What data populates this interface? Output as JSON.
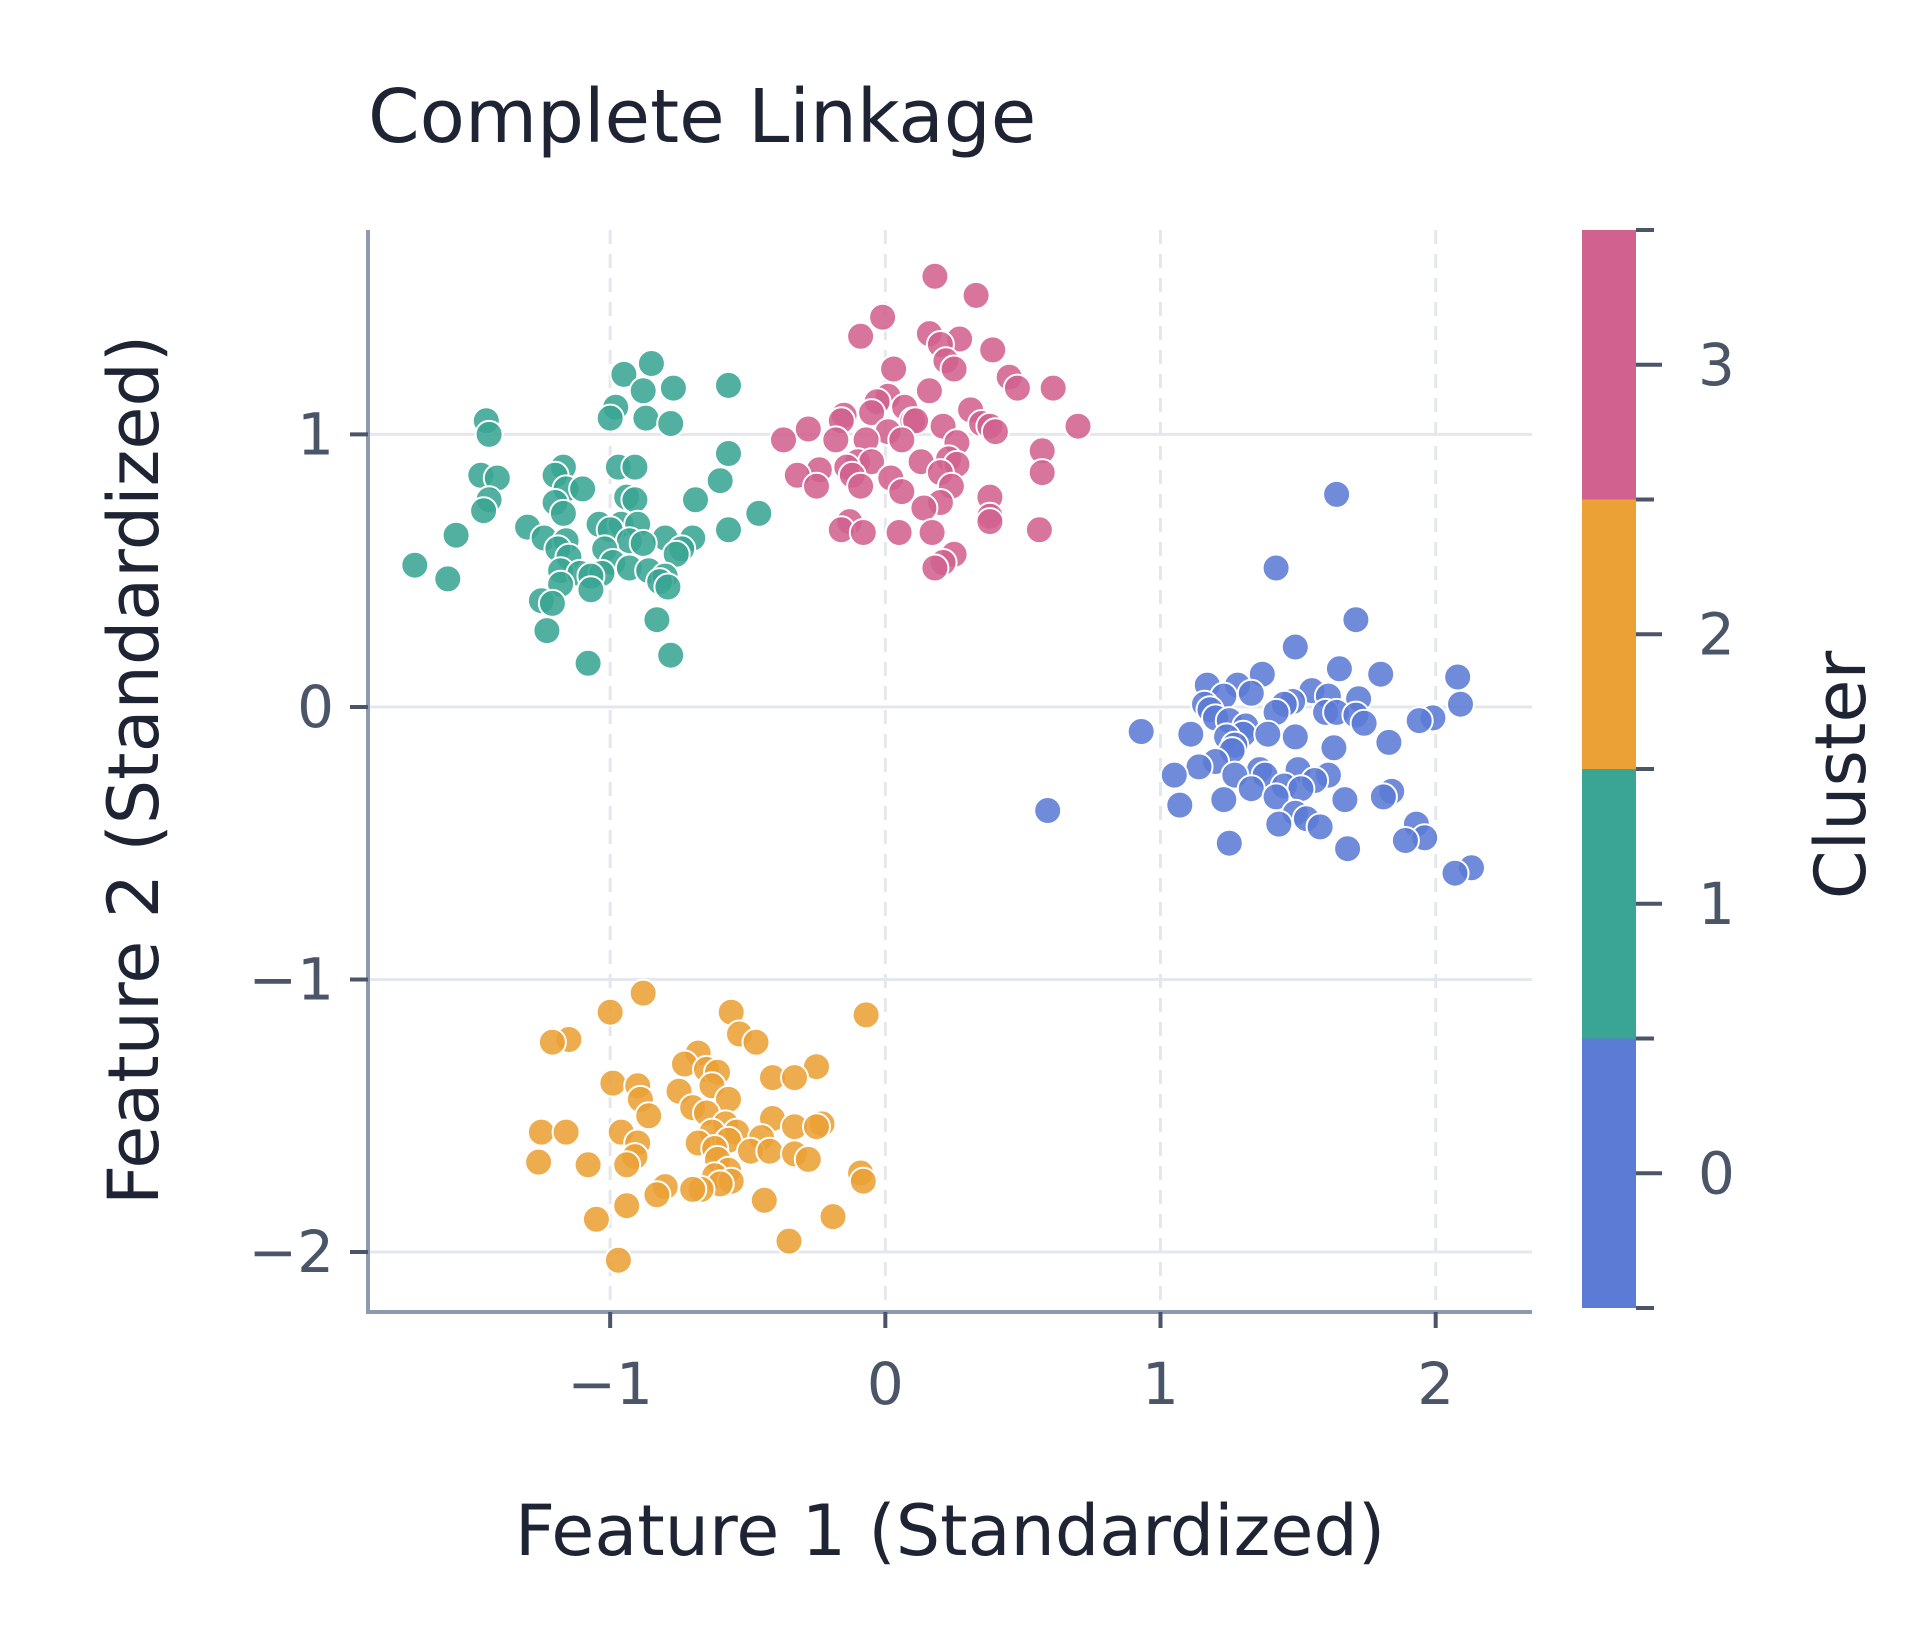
{
  "chart_data": {
    "type": "scatter",
    "title": "Complete Linkage",
    "xlabel": "Feature 1 (Standardized)",
    "ylabel": "Feature 2 (Standardized)",
    "xlim": [
      -1.88,
      2.35
    ],
    "ylim": [
      -2.22,
      1.75
    ],
    "xticks": [
      -1,
      0,
      1,
      2
    ],
    "xtick_labels": [
      "−1",
      "0",
      "1",
      "2"
    ],
    "yticks": [
      -2,
      -1,
      0,
      1
    ],
    "ytick_labels": [
      "−2",
      "−1",
      "0",
      "1"
    ],
    "grid": true,
    "colorbar": {
      "label": "Cluster",
      "ticks": [
        0,
        1,
        2,
        3
      ],
      "tick_labels": [
        "0",
        "1",
        "2",
        "3"
      ],
      "range": [
        -0.5,
        3.5
      ]
    },
    "series": [
      {
        "cluster": 0,
        "color": "#5b7bd5",
        "points": [
          [
            1.64,
            0.78
          ],
          [
            1.42,
            0.51
          ],
          [
            1.71,
            0.32
          ],
          [
            1.49,
            0.22
          ],
          [
            1.65,
            0.14
          ],
          [
            1.8,
            0.12
          ],
          [
            1.37,
            0.12
          ],
          [
            2.08,
            0.11
          ],
          [
            1.28,
            0.08
          ],
          [
            1.17,
            0.08
          ],
          [
            1.55,
            0.06
          ],
          [
            1.33,
            0.05
          ],
          [
            1.23,
            0.04
          ],
          [
            1.61,
            0.04
          ],
          [
            1.72,
            0.03
          ],
          [
            1.48,
            0.02
          ],
          [
            2.09,
            0.01
          ],
          [
            1.45,
            0.01
          ],
          [
            1.16,
            0.01
          ],
          [
            1.18,
            -0.01
          ],
          [
            1.6,
            -0.02
          ],
          [
            1.42,
            -0.02
          ],
          [
            1.64,
            -0.02
          ],
          [
            1.71,
            -0.03
          ],
          [
            1.2,
            -0.04
          ],
          [
            1.99,
            -0.04
          ],
          [
            1.25,
            -0.05
          ],
          [
            1.94,
            -0.05
          ],
          [
            1.74,
            -0.06
          ],
          [
            1.31,
            -0.07
          ],
          [
            0.93,
            -0.09
          ],
          [
            1.3,
            -0.1
          ],
          [
            1.39,
            -0.1
          ],
          [
            1.11,
            -0.1
          ],
          [
            1.24,
            -0.11
          ],
          [
            1.49,
            -0.11
          ],
          [
            1.83,
            -0.13
          ],
          [
            1.27,
            -0.14
          ],
          [
            1.63,
            -0.15
          ],
          [
            1.26,
            -0.16
          ],
          [
            1.2,
            -0.2
          ],
          [
            1.14,
            -0.22
          ],
          [
            1.36,
            -0.23
          ],
          [
            1.5,
            -0.23
          ],
          [
            1.05,
            -0.25
          ],
          [
            1.27,
            -0.25
          ],
          [
            1.38,
            -0.25
          ],
          [
            1.61,
            -0.25
          ],
          [
            1.56,
            -0.27
          ],
          [
            1.45,
            -0.29
          ],
          [
            1.51,
            -0.3
          ],
          [
            1.33,
            -0.3
          ],
          [
            1.84,
            -0.31
          ],
          [
            1.81,
            -0.33
          ],
          [
            1.42,
            -0.33
          ],
          [
            1.23,
            -0.34
          ],
          [
            1.67,
            -0.34
          ],
          [
            1.07,
            -0.36
          ],
          [
            0.59,
            -0.38
          ],
          [
            1.49,
            -0.39
          ],
          [
            1.53,
            -0.41
          ],
          [
            1.93,
            -0.43
          ],
          [
            1.43,
            -0.43
          ],
          [
            1.58,
            -0.44
          ],
          [
            1.96,
            -0.48
          ],
          [
            1.89,
            -0.49
          ],
          [
            1.25,
            -0.5
          ],
          [
            1.68,
            -0.52
          ],
          [
            2.13,
            -0.59
          ],
          [
            2.07,
            -0.61
          ]
        ]
      },
      {
        "cluster": 1,
        "color": "#3aa594",
        "points": [
          [
            -0.85,
            1.26
          ],
          [
            -0.95,
            1.22
          ],
          [
            -0.57,
            1.18
          ],
          [
            -0.77,
            1.17
          ],
          [
            -0.88,
            1.16
          ],
          [
            -0.98,
            1.1
          ],
          [
            -1.0,
            1.06
          ],
          [
            -0.87,
            1.06
          ],
          [
            -1.45,
            1.05
          ],
          [
            -0.78,
            1.04
          ],
          [
            -1.44,
            1.0
          ],
          [
            -0.57,
            0.93
          ],
          [
            -1.17,
            0.88
          ],
          [
            -0.97,
            0.88
          ],
          [
            -0.91,
            0.88
          ],
          [
            -1.47,
            0.85
          ],
          [
            -1.2,
            0.85
          ],
          [
            -1.41,
            0.84
          ],
          [
            -0.6,
            0.83
          ],
          [
            -1.16,
            0.8
          ],
          [
            -1.1,
            0.8
          ],
          [
            -0.94,
            0.77
          ],
          [
            -1.44,
            0.76
          ],
          [
            -0.91,
            0.76
          ],
          [
            -0.69,
            0.76
          ],
          [
            -1.2,
            0.75
          ],
          [
            -1.46,
            0.72
          ],
          [
            -1.17,
            0.71
          ],
          [
            -0.46,
            0.71
          ],
          [
            -1.04,
            0.67
          ],
          [
            -0.96,
            0.67
          ],
          [
            -0.9,
            0.67
          ],
          [
            -1.3,
            0.66
          ],
          [
            -1.0,
            0.65
          ],
          [
            -0.57,
            0.65
          ],
          [
            -1.56,
            0.63
          ],
          [
            -1.24,
            0.62
          ],
          [
            -0.8,
            0.62
          ],
          [
            -0.7,
            0.62
          ],
          [
            -1.16,
            0.61
          ],
          [
            -0.93,
            0.61
          ],
          [
            -0.88,
            0.6
          ],
          [
            -1.19,
            0.58
          ],
          [
            -1.02,
            0.58
          ],
          [
            -0.74,
            0.58
          ],
          [
            -0.76,
            0.56
          ],
          [
            -1.15,
            0.55
          ],
          [
            -0.99,
            0.53
          ],
          [
            -0.93,
            0.51
          ],
          [
            -1.71,
            0.52
          ],
          [
            -1.18,
            0.5
          ],
          [
            -0.86,
            0.5
          ],
          [
            -1.11,
            0.49
          ],
          [
            -1.03,
            0.49
          ],
          [
            -1.07,
            0.48
          ],
          [
            -0.8,
            0.48
          ],
          [
            -1.59,
            0.47
          ],
          [
            -0.82,
            0.46
          ],
          [
            -1.18,
            0.45
          ],
          [
            -0.79,
            0.44
          ],
          [
            -1.07,
            0.43
          ],
          [
            -1.25,
            0.39
          ],
          [
            -1.21,
            0.38
          ],
          [
            -0.83,
            0.32
          ],
          [
            -1.23,
            0.28
          ],
          [
            -0.78,
            0.19
          ],
          [
            -1.08,
            0.16
          ]
        ]
      },
      {
        "cluster": 2,
        "color": "#eba136",
        "points": [
          [
            -0.88,
            -1.05
          ],
          [
            -1.0,
            -1.12
          ],
          [
            -0.56,
            -1.12
          ],
          [
            -0.07,
            -1.13
          ],
          [
            -0.53,
            -1.2
          ],
          [
            -0.47,
            -1.23
          ],
          [
            -1.15,
            -1.22
          ],
          [
            -1.21,
            -1.23
          ],
          [
            -0.68,
            -1.27
          ],
          [
            -0.73,
            -1.31
          ],
          [
            -0.65,
            -1.33
          ],
          [
            -0.25,
            -1.32
          ],
          [
            -0.61,
            -1.34
          ],
          [
            -0.41,
            -1.36
          ],
          [
            -0.33,
            -1.36
          ],
          [
            -0.99,
            -1.38
          ],
          [
            -0.9,
            -1.39
          ],
          [
            -0.63,
            -1.39
          ],
          [
            -0.75,
            -1.41
          ],
          [
            -0.89,
            -1.44
          ],
          [
            -0.57,
            -1.44
          ],
          [
            -0.7,
            -1.47
          ],
          [
            -0.65,
            -1.49
          ],
          [
            -0.86,
            -1.5
          ],
          [
            -0.41,
            -1.51
          ],
          [
            -0.23,
            -1.53
          ],
          [
            -0.58,
            -1.53
          ],
          [
            -0.33,
            -1.54
          ],
          [
            -0.25,
            -1.54
          ],
          [
            -0.63,
            -1.56
          ],
          [
            -0.54,
            -1.56
          ],
          [
            -1.25,
            -1.56
          ],
          [
            -1.16,
            -1.56
          ],
          [
            -0.96,
            -1.56
          ],
          [
            -0.45,
            -1.58
          ],
          [
            -0.57,
            -1.59
          ],
          [
            -0.68,
            -1.6
          ],
          [
            -0.9,
            -1.6
          ],
          [
            -0.62,
            -1.62
          ],
          [
            -0.49,
            -1.63
          ],
          [
            -0.42,
            -1.63
          ],
          [
            -0.33,
            -1.64
          ],
          [
            -0.91,
            -1.65
          ],
          [
            -0.28,
            -1.66
          ],
          [
            -0.61,
            -1.66
          ],
          [
            -1.26,
            -1.67
          ],
          [
            -1.08,
            -1.68
          ],
          [
            -0.94,
            -1.68
          ],
          [
            -0.57,
            -1.7
          ],
          [
            -0.62,
            -1.72
          ],
          [
            -0.09,
            -1.71
          ],
          [
            -0.08,
            -1.74
          ],
          [
            -0.56,
            -1.74
          ],
          [
            -0.6,
            -1.75
          ],
          [
            -0.67,
            -1.77
          ],
          [
            -0.8,
            -1.76
          ],
          [
            -0.7,
            -1.77
          ],
          [
            -0.83,
            -1.79
          ],
          [
            -0.44,
            -1.81
          ],
          [
            -0.94,
            -1.83
          ],
          [
            -1.05,
            -1.88
          ],
          [
            -0.19,
            -1.87
          ],
          [
            -0.35,
            -1.96
          ],
          [
            -0.97,
            -2.03
          ]
        ]
      },
      {
        "cluster": 3,
        "color": "#d1628f",
        "points": [
          [
            0.18,
            1.58
          ],
          [
            0.33,
            1.51
          ],
          [
            -0.01,
            1.43
          ],
          [
            -0.09,
            1.36
          ],
          [
            0.16,
            1.37
          ],
          [
            0.27,
            1.35
          ],
          [
            0.2,
            1.33
          ],
          [
            0.39,
            1.31
          ],
          [
            0.22,
            1.27
          ],
          [
            0.03,
            1.24
          ],
          [
            0.25,
            1.24
          ],
          [
            0.45,
            1.21
          ],
          [
            0.48,
            1.17
          ],
          [
            0.61,
            1.17
          ],
          [
            0.16,
            1.16
          ],
          [
            0.01,
            1.14
          ],
          [
            -0.03,
            1.12
          ],
          [
            0.07,
            1.1
          ],
          [
            0.31,
            1.09
          ],
          [
            -0.05,
            1.08
          ],
          [
            -0.15,
            1.07
          ],
          [
            -0.16,
            1.05
          ],
          [
            0.1,
            1.05
          ],
          [
            0.11,
            1.05
          ],
          [
            0.21,
            1.03
          ],
          [
            0.35,
            1.04
          ],
          [
            0.7,
            1.03
          ],
          [
            0.38,
            1.03
          ],
          [
            -0.28,
            1.02
          ],
          [
            0.01,
            1.01
          ],
          [
            0.4,
            1.01
          ],
          [
            -0.18,
            0.98
          ],
          [
            -0.07,
            0.98
          ],
          [
            0.06,
            0.98
          ],
          [
            0.26,
            0.97
          ],
          [
            -0.37,
            0.98
          ],
          [
            0.57,
            0.94
          ],
          [
            0.23,
            0.91
          ],
          [
            -0.1,
            0.9
          ],
          [
            -0.05,
            0.9
          ],
          [
            0.13,
            0.9
          ],
          [
            0.26,
            0.89
          ],
          [
            -0.14,
            0.88
          ],
          [
            -0.24,
            0.87
          ],
          [
            0.2,
            0.86
          ],
          [
            0.57,
            0.86
          ],
          [
            -0.32,
            0.85
          ],
          [
            -0.12,
            0.85
          ],
          [
            0.02,
            0.84
          ],
          [
            0.24,
            0.81
          ],
          [
            -0.25,
            0.81
          ],
          [
            -0.09,
            0.81
          ],
          [
            0.06,
            0.79
          ],
          [
            0.38,
            0.77
          ],
          [
            0.2,
            0.75
          ],
          [
            0.14,
            0.73
          ],
          [
            0.38,
            0.7
          ],
          [
            -0.13,
            0.68
          ],
          [
            0.38,
            0.68
          ],
          [
            -0.16,
            0.65
          ],
          [
            0.05,
            0.64
          ],
          [
            0.17,
            0.64
          ],
          [
            -0.08,
            0.64
          ],
          [
            0.56,
            0.65
          ],
          [
            0.25,
            0.56
          ],
          [
            0.21,
            0.53
          ],
          [
            0.18,
            0.51
          ]
        ]
      }
    ]
  }
}
